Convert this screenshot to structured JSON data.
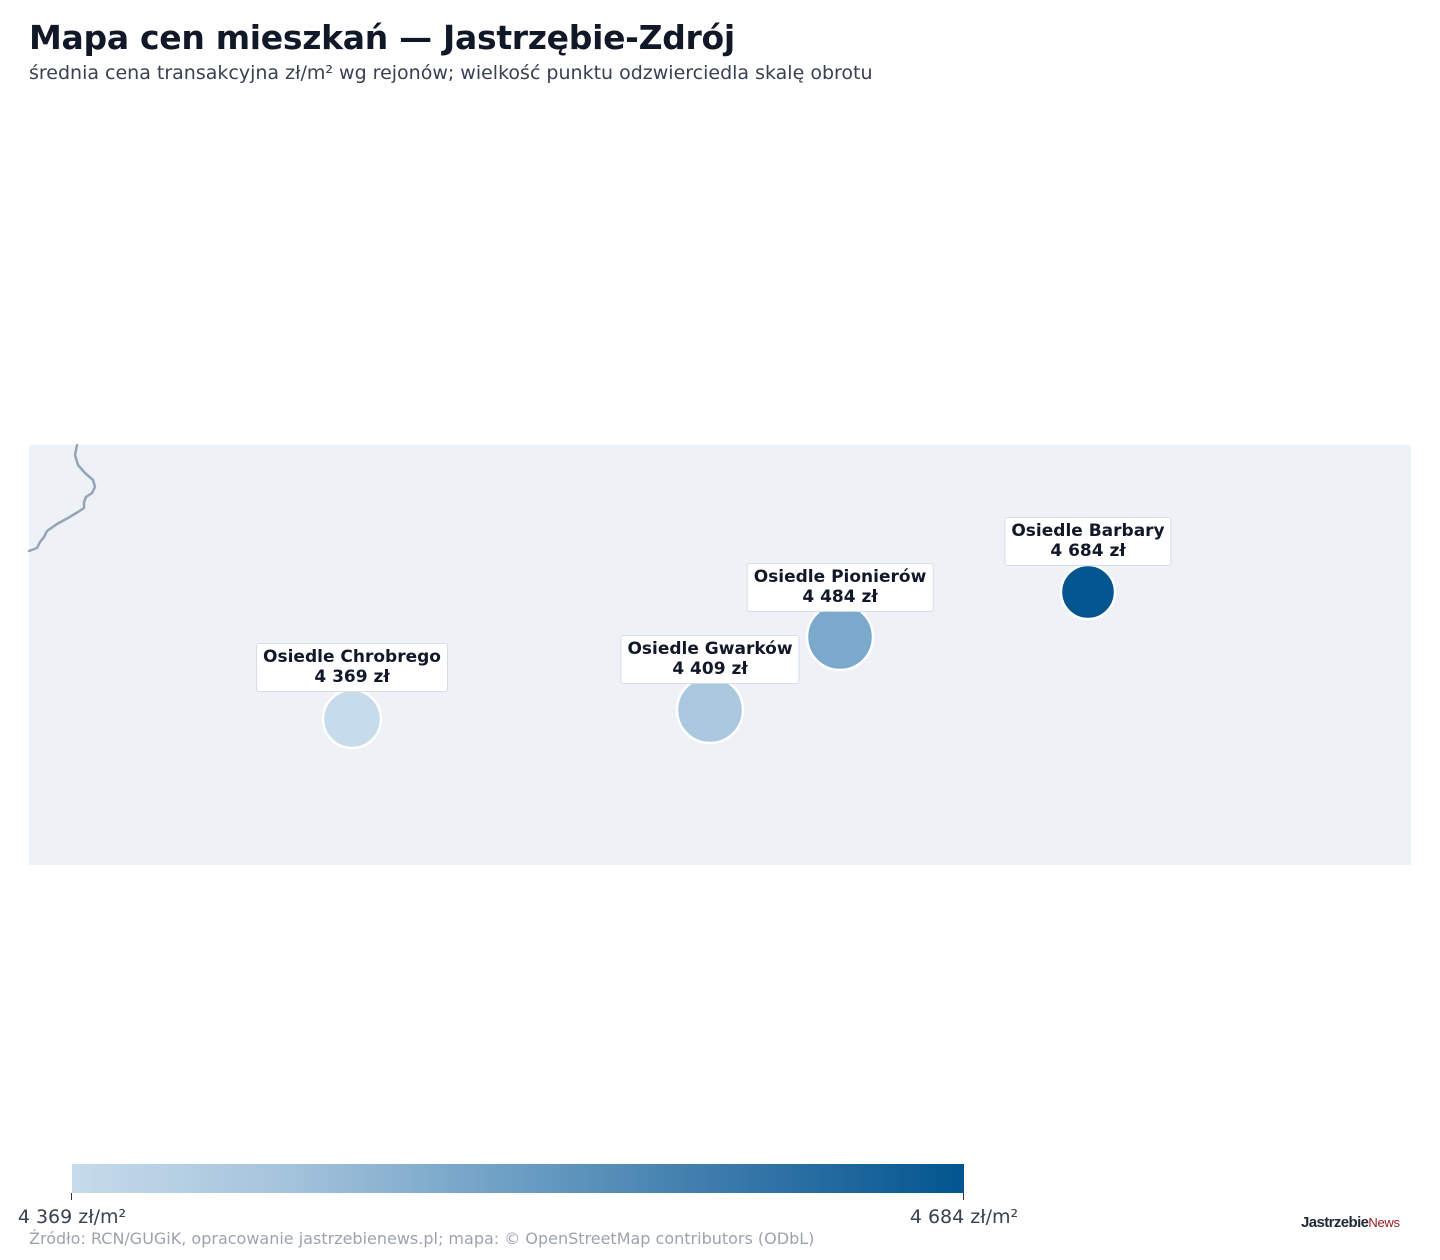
{
  "header": {
    "title": "Mapa cen mieszkań — Jastrzębie-Zdrój",
    "subtitle": "średnia cena transakcyjna zł/m² wg rejonów; wielkość punktu odzwierciedla skalę obrotu"
  },
  "map": {
    "background_color": "#eef2f7",
    "border_color": "#94a3b8",
    "districts": [
      {
        "name": "Osiedle Chrobrego",
        "price_label": "4 369 zł",
        "price": 4369,
        "color": "#c6dbeb"
      },
      {
        "name": "Osiedle Gwarków",
        "price_label": "4 409 zł",
        "price": 4409,
        "color": "#aac8df"
      },
      {
        "name": "Osiedle Pionierów",
        "price_label": "4 484 zł",
        "price": 4484,
        "color": "#7ba9cc"
      },
      {
        "name": "Osiedle Barbary",
        "price_label": "4 684 zł",
        "price": 4684,
        "color": "#02558f"
      }
    ]
  },
  "legend": {
    "min_label": "4 369 zł/m²",
    "max_label": "4 684 zł/m²",
    "color_min": "#c6dbeb",
    "color_max": "#02558f"
  },
  "footer": {
    "source": "Źródło: RCN/GUGiK, opracowanie jastrzebienews.pl; mapa: © OpenStreetMap contributors (ODbL)",
    "logo_main": "Jastrzebie",
    "logo_accent": "News"
  }
}
